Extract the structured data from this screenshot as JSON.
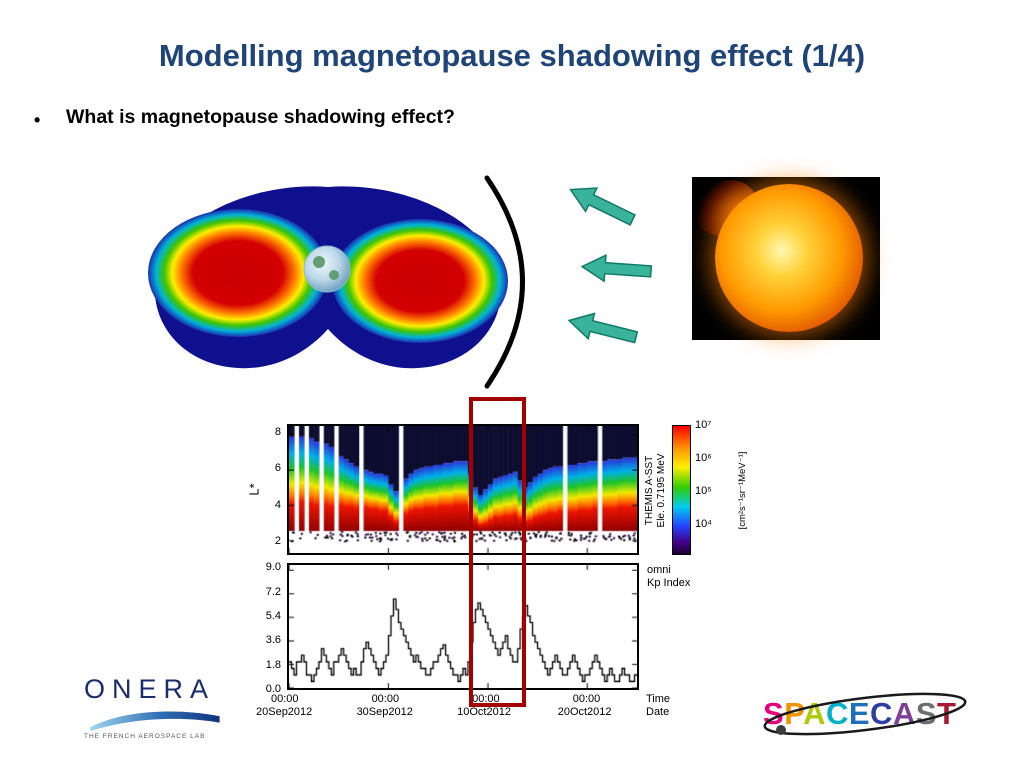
{
  "slide": {
    "title": "Modelling magnetopause shadowing effect (1/4)",
    "bullet_marker": "•",
    "bullet_text": "What is magnetopause shadowing effect?"
  },
  "colors": {
    "title": "#1F4477",
    "arrow": "#3AB39B",
    "arrow_edge": "#117A66",
    "highlight": "#A40000",
    "onera_blue": "#1B2B6B"
  },
  "icons": {
    "solar_wind_arrows": "left-arrow",
    "magnetopause_arc": "arc-curve",
    "spacecast_orbit": "orbit-ellipse"
  },
  "plot": {
    "spectrogram": {
      "ylabel": "L*",
      "yticks": [
        "8",
        "6",
        "4",
        "2"
      ],
      "instrument_line1": "THEMIS A-SST",
      "instrument_line2": "Ele. 0.7195 MeV",
      "colorbar_ticks": [
        "10⁷",
        "10⁶",
        "10⁵",
        "10⁴"
      ],
      "colorbar_unit": "[cm²s⁻¹sr⁻¹MeV⁻¹]"
    },
    "kp": {
      "yticks": [
        "9.0",
        "7.2",
        "5.4",
        "3.6",
        "1.8",
        "0.0"
      ],
      "label_line1": "omni",
      "label_line2": "Kp Index"
    },
    "xaxis": {
      "times": [
        "00:00",
        "00:00",
        "00:00",
        "00:00"
      ],
      "dates": [
        "20Sep2012",
        "30Sep2012",
        "10Oct2012",
        "20Oct2012"
      ],
      "time_caption": "Time",
      "date_caption": "Date"
    }
  },
  "logos": {
    "onera": {
      "name": "ONERA",
      "tagline": "THE FRENCH AEROSPACE LAB"
    },
    "spacecast": {
      "letters": [
        {
          "ch": "S",
          "color": "#E6007E"
        },
        {
          "ch": "P",
          "color": "#F39200"
        },
        {
          "ch": "A",
          "color": "#AFCA0B"
        },
        {
          "ch": "C",
          "color": "#00B1C8"
        },
        {
          "ch": "E",
          "color": "#1E71B8"
        },
        {
          "ch": "C",
          "color": "#303F9F"
        },
        {
          "ch": "A",
          "color": "#7D3F98"
        },
        {
          "ch": "S",
          "color": "#6D6E71"
        },
        {
          "ch": "T",
          "color": "#A6192E"
        }
      ]
    }
  },
  "chart_data": [
    {
      "type": "heatmap",
      "title": "THEMIS A-SST Ele. 0.7195 MeV",
      "ylabel": "L*",
      "ylim": [
        1.3,
        8.5
      ],
      "x_range_days": 35,
      "x_tick_days": [
        0,
        10,
        20,
        30
      ],
      "x_tick_labels": [
        "20Sep2012",
        "30Sep2012",
        "10Oct2012",
        "20Oct2012"
      ],
      "colorbar_range_log10_flux": [
        4,
        7
      ],
      "columns": [
        [
          7.9,
          4.6
        ],
        null,
        [
          7.9,
          4.7
        ],
        null,
        [
          7.8,
          4.6
        ],
        [
          7.6,
          4.5
        ],
        null,
        [
          7.5,
          4.5
        ],
        [
          7.3,
          4.4
        ],
        null,
        [
          6.8,
          4.4
        ],
        [
          6.6,
          4.3
        ],
        [
          6.4,
          4.3
        ],
        [
          6.2,
          4.2
        ],
        null,
        [
          6.0,
          4.2
        ],
        [
          5.9,
          4.1
        ],
        [
          5.8,
          4.1
        ],
        [
          5.8,
          4.0
        ],
        [
          5.7,
          4.0
        ],
        [
          5.2,
          3.6
        ],
        [
          4.8,
          3.3
        ],
        null,
        [
          5.5,
          3.8
        ],
        [
          5.8,
          4.0
        ],
        [
          6.0,
          4.1
        ],
        [
          6.1,
          4.1
        ],
        [
          6.2,
          4.2
        ],
        [
          6.2,
          4.2
        ],
        [
          6.3,
          4.2
        ],
        [
          6.3,
          4.3
        ],
        [
          6.4,
          4.3
        ],
        [
          6.4,
          4.3
        ],
        [
          6.5,
          4.4
        ],
        [
          6.5,
          4.4
        ],
        [
          6.5,
          4.4
        ],
        [
          5.8,
          3.9
        ],
        [
          5.0,
          3.4
        ],
        [
          4.6,
          3.1
        ],
        [
          4.9,
          3.2
        ],
        [
          5.2,
          3.4
        ],
        [
          5.5,
          3.6
        ],
        [
          5.6,
          3.6
        ],
        [
          5.7,
          3.7
        ],
        [
          5.8,
          3.7
        ],
        [
          5.9,
          3.8
        ],
        [
          5.4,
          3.5
        ],
        [
          5.0,
          3.3
        ],
        [
          5.3,
          3.4
        ],
        [
          5.6,
          3.6
        ],
        [
          5.8,
          3.7
        ],
        [
          6.0,
          3.8
        ],
        [
          6.1,
          3.9
        ],
        [
          6.2,
          3.9
        ],
        [
          6.2,
          4.0
        ],
        null,
        [
          6.3,
          4.0
        ],
        [
          6.3,
          4.0
        ],
        [
          6.4,
          4.1
        ],
        [
          6.4,
          4.1
        ],
        [
          6.5,
          4.1
        ],
        [
          6.5,
          4.2
        ],
        null,
        [
          6.5,
          4.2
        ],
        [
          6.6,
          4.2
        ],
        [
          6.6,
          4.2
        ],
        [
          6.6,
          4.3
        ],
        [
          6.7,
          4.3
        ],
        [
          6.7,
          4.3
        ],
        [
          6.7,
          4.3
        ]
      ]
    },
    {
      "type": "line",
      "title": "omni Kp Index",
      "ylim": [
        0,
        9
      ],
      "yticks": [
        9.0,
        7.2,
        5.4,
        3.6,
        1.8,
        0.0
      ],
      "x_range_days": 35,
      "x_tick_days": [
        0,
        10,
        20,
        30
      ],
      "x_tick_labels": [
        "20Sep2012",
        "30Sep2012",
        "10Oct2012",
        "20Oct2012"
      ],
      "values_per_day": 4,
      "values": [
        2,
        1.5,
        1,
        2,
        2,
        2.5,
        2,
        1,
        1,
        0.5,
        1,
        1.5,
        2,
        3,
        2.5,
        2,
        1.5,
        1,
        2,
        2,
        2.5,
        3,
        2.5,
        2,
        1.5,
        1,
        1.5,
        1,
        1,
        2,
        3,
        3.5,
        3,
        2.5,
        2,
        1.5,
        1,
        1.5,
        2,
        2.5,
        4,
        5.5,
        6.8,
        6,
        5,
        4.5,
        4,
        3.5,
        3,
        2.5,
        2,
        2.5,
        2,
        1.5,
        1.5,
        1,
        1,
        1.5,
        2,
        2,
        2.5,
        3,
        3.3,
        2.5,
        2,
        1.5,
        1,
        1,
        0.5,
        1,
        1.5,
        1,
        2,
        3.5,
        5,
        6,
        6.5,
        6,
        5.5,
        5,
        4.5,
        4,
        3.5,
        3,
        2.5,
        3,
        3.5,
        4,
        3,
        2.5,
        2,
        2,
        3,
        4.5,
        5.5,
        6.3,
        5.5,
        5,
        4,
        3.5,
        3,
        2.5,
        2,
        1.5,
        1,
        1.5,
        2,
        2.5,
        2,
        1.5,
        1,
        1,
        1.5,
        2,
        2.5,
        2,
        1.5,
        1,
        0.5,
        1,
        1,
        1.5,
        2,
        2.5,
        2,
        1.5,
        1,
        0.5,
        1,
        1.5,
        1,
        0.5,
        0.5,
        1,
        1.5,
        1,
        1,
        0.5,
        0.5,
        1
      ]
    }
  ]
}
